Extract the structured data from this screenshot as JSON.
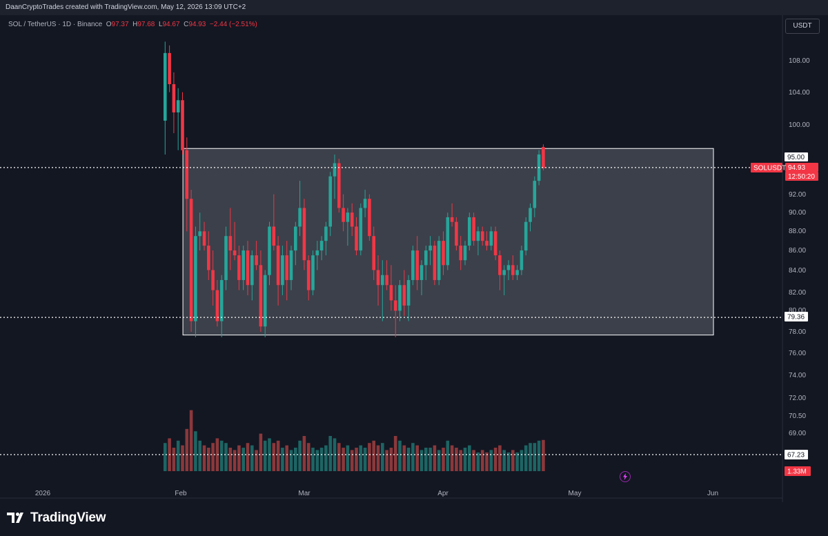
{
  "header": {
    "credit": "DaanCryptoTrades created with TradingView.com, May 12, 2026 13:09 UTC+2"
  },
  "legend": {
    "symbol": "SOL / TetherUS · 1D · Binance",
    "o_label": "O",
    "o_value": "97.37",
    "h_label": "H",
    "h_value": "97.68",
    "l_label": "L",
    "l_value": "94.67",
    "c_label": "C",
    "c_value": "94.93",
    "change": "−2.44 (−2.51%)"
  },
  "price_scale": {
    "currency": "USDT",
    "ticks": [
      "108.00",
      "104.00",
      "100.00",
      "92.00",
      "90.00",
      "88.00",
      "86.00",
      "84.00",
      "82.00",
      "80.00",
      "78.00",
      "76.00",
      "74.00",
      "72.00",
      "70.50",
      "69.00"
    ]
  },
  "time_axis": {
    "labels": [
      "2026",
      "Feb",
      "Mar",
      "Apr",
      "May",
      "Jun"
    ]
  },
  "price_tags": {
    "resistance": "95.00",
    "symbol_tag": "SOLUSDT",
    "last_price": "94.93",
    "countdown": "12:50:20",
    "support": "79.36",
    "lower_line": "67.23",
    "volume": "1.33M"
  },
  "branding": {
    "name": "TradingView"
  },
  "colors": {
    "up": "#26a69a",
    "down": "#f23645",
    "up_vol": "#26a69a",
    "down_vol": "#ef5350",
    "background": "#131722",
    "range_box": "#ffffff"
  },
  "chart_data": {
    "type": "candlestick",
    "symbol": "SOL / TetherUS",
    "interval": "1D",
    "exchange": "Binance",
    "first_date": "2026-02-01",
    "ohlc": [
      [
        100.5,
        110.5,
        96.5,
        109.0
      ],
      [
        109.0,
        110.0,
        104.0,
        105.0
      ],
      [
        105.0,
        106.5,
        99.0,
        101.5
      ],
      [
        101.5,
        104.5,
        97.0,
        103.0
      ],
      [
        103.0,
        104.0,
        96.5,
        97.0
      ],
      [
        97.0,
        98.5,
        88.0,
        91.5
      ],
      [
        91.5,
        92.5,
        78.0,
        79.0
      ],
      [
        79.0,
        88.5,
        77.5,
        87.5
      ],
      [
        87.5,
        90.0,
        86.0,
        88.0
      ],
      [
        88.0,
        89.0,
        86.0,
        86.5
      ],
      [
        86.5,
        88.0,
        83.0,
        84.0
      ],
      [
        84.0,
        86.0,
        80.5,
        82.0
      ],
      [
        82.0,
        83.0,
        78.5,
        79.0
      ],
      [
        79.0,
        83.5,
        77.5,
        83.0
      ],
      [
        83.0,
        88.5,
        82.0,
        87.5
      ],
      [
        87.5,
        90.5,
        84.0,
        86.0
      ],
      [
        86.0,
        89.0,
        85.0,
        85.5
      ],
      [
        85.5,
        86.5,
        82.0,
        83.0
      ],
      [
        83.0,
        86.5,
        82.0,
        86.0
      ],
      [
        86.0,
        87.0,
        81.5,
        82.5
      ],
      [
        82.5,
        86.0,
        81.0,
        85.5
      ],
      [
        85.5,
        87.0,
        84.0,
        84.5
      ],
      [
        84.5,
        86.0,
        78.0,
        78.5
      ],
      [
        78.5,
        84.0,
        77.5,
        83.5
      ],
      [
        83.5,
        89.0,
        82.5,
        88.5
      ],
      [
        88.5,
        92.0,
        86.0,
        86.5
      ],
      [
        86.5,
        87.5,
        80.5,
        82.5
      ],
      [
        82.5,
        86.5,
        81.5,
        85.5
      ],
      [
        85.5,
        87.0,
        81.0,
        83.0
      ],
      [
        83.0,
        86.5,
        82.0,
        86.0
      ],
      [
        86.0,
        89.0,
        84.5,
        88.5
      ],
      [
        88.5,
        93.5,
        87.5,
        90.5
      ],
      [
        90.5,
        91.5,
        84.0,
        85.0
      ],
      [
        85.0,
        85.5,
        81.0,
        82.0
      ],
      [
        82.0,
        86.0,
        81.5,
        85.5
      ],
      [
        85.5,
        87.0,
        84.0,
        86.0
      ],
      [
        86.0,
        87.5,
        85.0,
        87.0
      ],
      [
        87.0,
        89.0,
        85.5,
        88.5
      ],
      [
        88.5,
        94.5,
        87.5,
        94.0
      ],
      [
        94.0,
        96.5,
        91.5,
        95.5
      ],
      [
        95.5,
        96.0,
        90.0,
        90.5
      ],
      [
        90.5,
        92.0,
        88.0,
        89.0
      ],
      [
        89.0,
        90.5,
        86.5,
        90.0
      ],
      [
        90.0,
        91.0,
        87.5,
        88.5
      ],
      [
        88.5,
        89.5,
        85.5,
        86.0
      ],
      [
        86.0,
        91.0,
        85.5,
        90.5
      ],
      [
        90.5,
        92.5,
        89.5,
        91.5
      ],
      [
        91.5,
        92.0,
        87.0,
        87.5
      ],
      [
        87.5,
        88.5,
        83.0,
        84.0
      ],
      [
        84.0,
        85.5,
        80.5,
        82.5
      ],
      [
        82.5,
        85.0,
        79.0,
        83.5
      ],
      [
        83.5,
        85.0,
        82.0,
        82.5
      ],
      [
        82.5,
        84.5,
        80.0,
        81.0
      ],
      [
        81.0,
        82.5,
        77.5,
        80.0
      ],
      [
        80.0,
        83.0,
        79.0,
        82.5
      ],
      [
        82.5,
        84.0,
        79.5,
        80.5
      ],
      [
        80.5,
        83.5,
        79.0,
        83.0
      ],
      [
        83.0,
        86.5,
        82.5,
        86.0
      ],
      [
        86.0,
        87.5,
        82.0,
        83.0
      ],
      [
        83.0,
        85.0,
        81.5,
        84.5
      ],
      [
        84.5,
        86.5,
        83.0,
        86.0
      ],
      [
        86.0,
        87.5,
        84.5,
        86.5
      ],
      [
        86.5,
        87.0,
        82.5,
        83.0
      ],
      [
        83.0,
        87.5,
        82.5,
        87.0
      ],
      [
        87.0,
        88.0,
        83.5,
        84.5
      ],
      [
        84.5,
        90.0,
        84.0,
        89.5
      ],
      [
        89.5,
        91.0,
        88.5,
        89.0
      ],
      [
        89.0,
        89.5,
        86.0,
        86.5
      ],
      [
        86.5,
        87.5,
        84.0,
        85.0
      ],
      [
        85.0,
        87.0,
        84.5,
        86.5
      ],
      [
        86.5,
        90.0,
        86.0,
        89.5
      ],
      [
        89.5,
        90.0,
        86.5,
        87.0
      ],
      [
        87.0,
        88.5,
        85.5,
        88.0
      ],
      [
        88.0,
        88.5,
        86.5,
        87.0
      ],
      [
        87.0,
        88.0,
        86.0,
        86.5
      ],
      [
        86.5,
        88.5,
        86.0,
        88.0
      ],
      [
        88.0,
        88.5,
        85.0,
        85.5
      ],
      [
        85.5,
        86.0,
        82.0,
        83.5
      ],
      [
        83.5,
        84.5,
        81.5,
        84.0
      ],
      [
        84.0,
        85.0,
        83.0,
        84.5
      ],
      [
        84.5,
        85.5,
        83.0,
        83.5
      ],
      [
        83.5,
        84.5,
        83.0,
        84.0
      ],
      [
        84.0,
        86.5,
        83.5,
        86.0
      ],
      [
        86.0,
        89.5,
        85.5,
        89.0
      ],
      [
        89.0,
        91.0,
        88.0,
        90.5
      ],
      [
        90.5,
        94.0,
        89.5,
        93.5
      ],
      [
        93.5,
        97.0,
        93.0,
        96.5
      ],
      [
        97.37,
        97.68,
        94.67,
        94.93
      ]
    ],
    "volume_millions": [
      1.2,
      1.4,
      1.0,
      1.3,
      1.1,
      1.8,
      2.6,
      1.7,
      1.3,
      1.1,
      1.0,
      1.2,
      1.4,
      1.3,
      1.2,
      1.0,
      0.9,
      1.1,
      1.0,
      1.2,
      1.1,
      0.9,
      1.6,
      1.3,
      1.4,
      1.2,
      1.3,
      1.0,
      1.1,
      0.9,
      1.0,
      1.3,
      1.5,
      1.2,
      1.0,
      0.9,
      1.0,
      1.1,
      1.5,
      1.4,
      1.2,
      1.0,
      1.1,
      0.9,
      1.0,
      1.1,
      1.0,
      1.2,
      1.3,
      1.1,
      1.2,
      0.9,
      1.0,
      1.5,
      1.3,
      1.1,
      1.0,
      1.2,
      1.1,
      0.9,
      1.0,
      1.0,
      1.1,
      0.9,
      1.0,
      1.3,
      1.1,
      1.0,
      0.9,
      1.0,
      1.1,
      0.9,
      0.8,
      0.9,
      0.8,
      0.9,
      1.0,
      1.1,
      0.9,
      0.8,
      0.9,
      0.8,
      0.9,
      1.1,
      1.2,
      1.2,
      1.3,
      1.33
    ],
    "range_box": {
      "start_index": 6,
      "end_index": 118,
      "low": 77.7,
      "high": 97.2
    },
    "horizontal_lines": [
      {
        "price": 95.0,
        "label": "95.00"
      },
      {
        "price": 79.36,
        "label": "79.36"
      },
      {
        "price": 67.23,
        "label": "67.23"
      }
    ],
    "ylim": [
      66.0,
      112.0
    ],
    "scale": "log"
  }
}
